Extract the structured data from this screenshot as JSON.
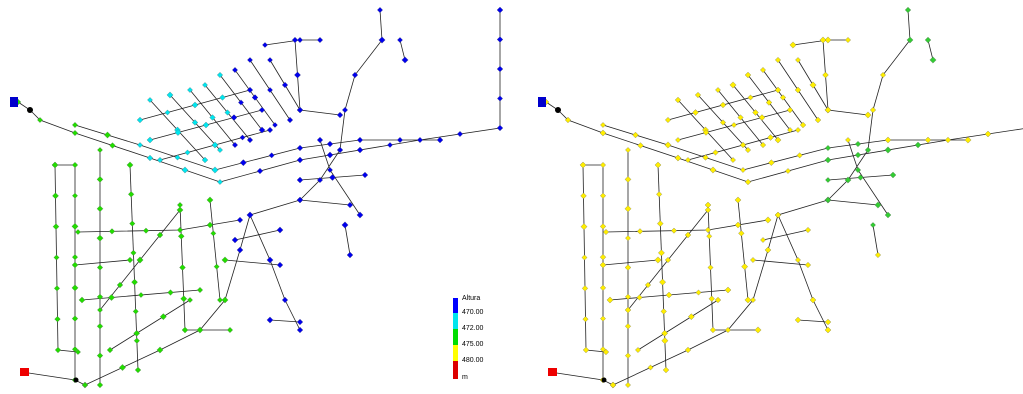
{
  "legend": {
    "title": "Altura",
    "labels": [
      "470.00",
      "472.00",
      "475.00",
      "480.00"
    ],
    "unit": "m"
  }
}
